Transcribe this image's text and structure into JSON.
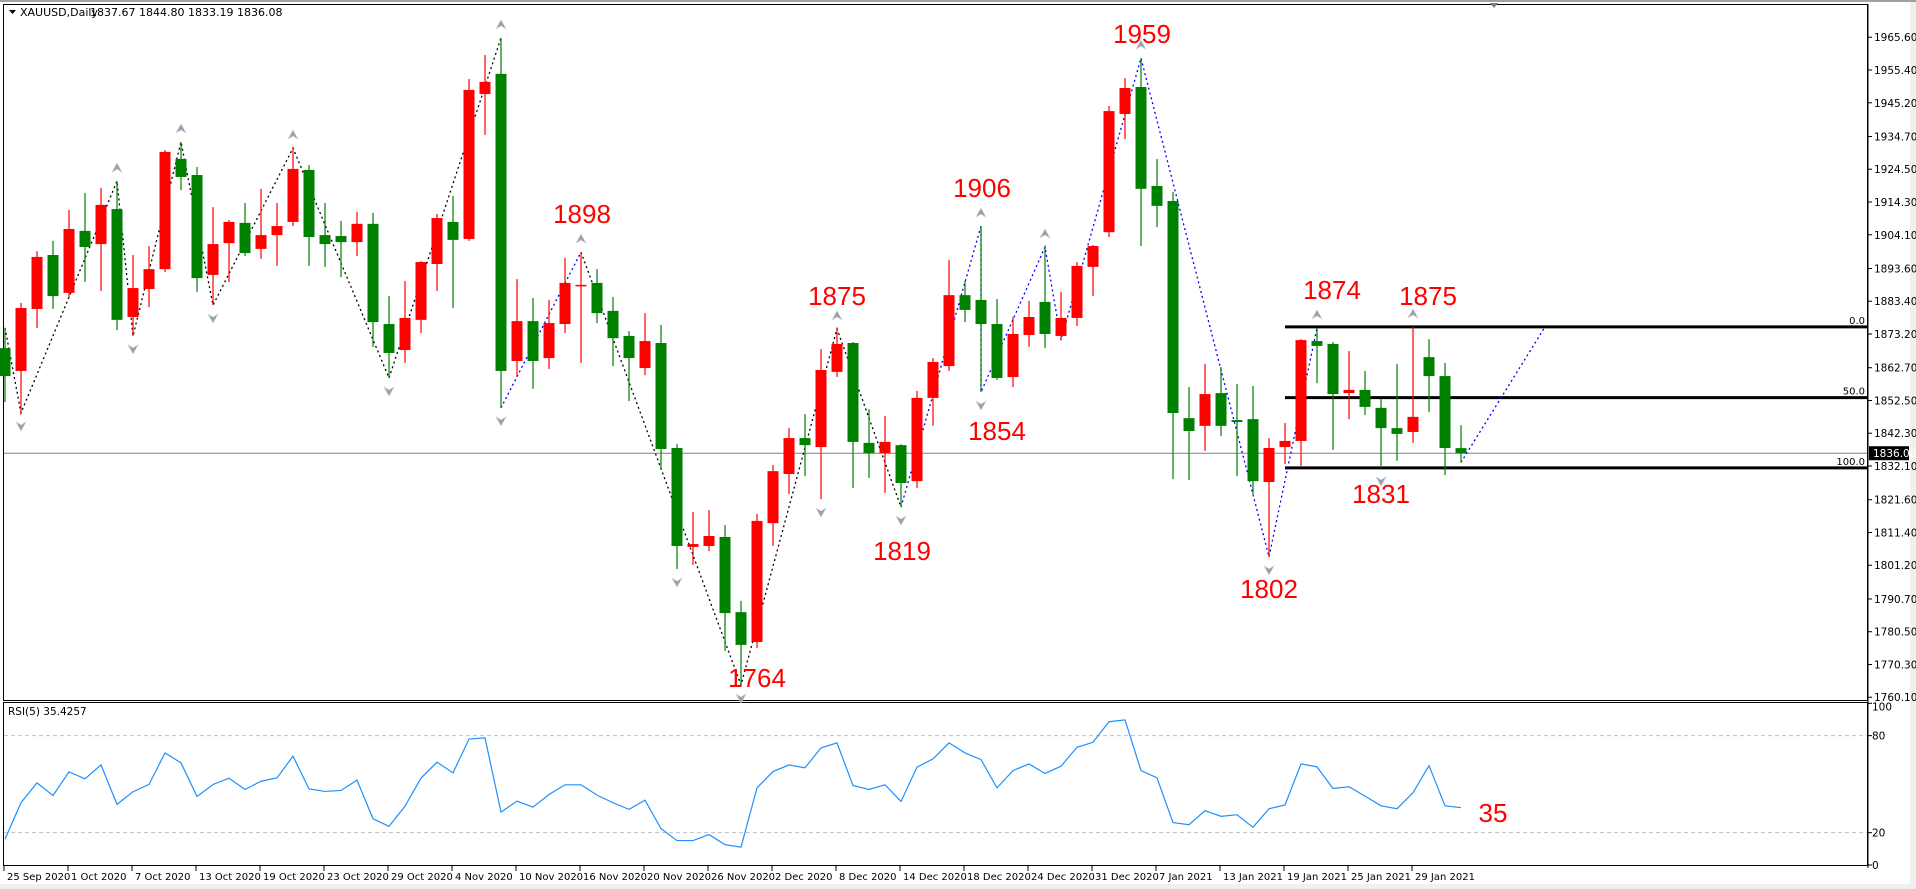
{
  "header": {
    "symbol": "XAUUSD,Daily",
    "ohlc_text": "1837.67 1844.80 1833.19 1836.08"
  },
  "rsi_panel": {
    "label": "RSI(5) 35.4257",
    "annotation": "35",
    "axis_labels": [
      "100",
      "80",
      "20",
      "0"
    ]
  },
  "colors": {
    "bull": "#ff0000",
    "bear": "#008000",
    "rsi_line": "#1e90ff",
    "zigzag_black": "#000000",
    "zigzag_blue": "#0000ff",
    "annotation": "#ff0000",
    "price_line": "#808080"
  },
  "chart_data": [
    {
      "type": "candlestick",
      "symbol": "XAUUSD",
      "timeframe": "Daily",
      "ylim": [
        1760.1,
        1965.6
      ],
      "price_ticks": [
        "1965.60",
        "1955.40",
        "1945.20",
        "1934.70",
        "1924.50",
        "1914.30",
        "1904.10",
        "1893.60",
        "1883.40",
        "1873.20",
        "1862.70",
        "1852.50",
        "1842.30",
        "1832.10",
        "1821.60",
        "1811.40",
        "1801.20",
        "1790.70",
        "1780.50",
        "1770.30",
        "1760.10"
      ],
      "date_ticks": [
        "25 Sep 2020",
        "1 Oct 2020",
        "7 Oct 2020",
        "13 Oct 2020",
        "19 Oct 2020",
        "23 Oct 2020",
        "29 Oct 2020",
        "4 Nov 2020",
        "10 Nov 2020",
        "16 Nov 2020",
        "20 Nov 2020",
        "26 Nov 2020",
        "2 Dec 2020",
        "8 Dec 2020",
        "14 Dec 2020",
        "18 Dec 2020",
        "24 Dec 2020",
        "31 Dec 2020",
        "7 Jan 2021",
        "13 Jan 2021",
        "19 Jan 2021",
        "25 Jan 2021",
        "29 Jan 2021"
      ],
      "current_price": "1836.08",
      "ohlc": [
        [
          1868.8,
          1875.1,
          1852.0,
          1860.1
        ],
        [
          1861.7,
          1882.9,
          1848.6,
          1881.3
        ],
        [
          1881.0,
          1899.0,
          1875.1,
          1897.2
        ],
        [
          1897.8,
          1902.2,
          1881.0,
          1885.0
        ],
        [
          1886.0,
          1911.8,
          1884.4,
          1905.9
        ],
        [
          1905.3,
          1917.1,
          1889.4,
          1900.3
        ],
        [
          1901.2,
          1918.7,
          1886.6,
          1913.4
        ],
        [
          1912.1,
          1920.8,
          1874.4,
          1877.6
        ],
        [
          1878.5,
          1897.8,
          1872.6,
          1887.5
        ],
        [
          1887.2,
          1900.6,
          1881.6,
          1893.4
        ],
        [
          1893.4,
          1930.5,
          1892.5,
          1929.9
        ],
        [
          1927.7,
          1933.0,
          1918.0,
          1922.1
        ],
        [
          1922.7,
          1925.2,
          1886.3,
          1890.6
        ],
        [
          1891.6,
          1912.7,
          1882.2,
          1901.2
        ],
        [
          1901.5,
          1908.7,
          1889.4,
          1908.1
        ],
        [
          1907.8,
          1914.0,
          1897.5,
          1898.4
        ],
        [
          1899.7,
          1918.4,
          1896.6,
          1904.0
        ],
        [
          1904.0,
          1914.0,
          1894.4,
          1906.8
        ],
        [
          1908.1,
          1931.1,
          1906.8,
          1924.6
        ],
        [
          1924.3,
          1925.8,
          1894.4,
          1903.4
        ],
        [
          1904.0,
          1914.0,
          1894.1,
          1901.2
        ],
        [
          1903.7,
          1908.4,
          1890.9,
          1901.8
        ],
        [
          1901.8,
          1911.2,
          1897.5,
          1907.5
        ],
        [
          1907.5,
          1910.9,
          1869.2,
          1876.9
        ],
        [
          1876.3,
          1885.0,
          1859.5,
          1867.3
        ],
        [
          1868.2,
          1889.7,
          1864.2,
          1878.2
        ],
        [
          1877.6,
          1895.9,
          1873.5,
          1895.6
        ],
        [
          1895.0,
          1910.6,
          1886.6,
          1909.3
        ],
        [
          1908.1,
          1916.2,
          1881.3,
          1902.5
        ],
        [
          1902.8,
          1952.6,
          1902.2,
          1949.2
        ],
        [
          1947.9,
          1960.1,
          1935.2,
          1951.7
        ],
        [
          1954.2,
          1965.4,
          1850.2,
          1861.7
        ],
        [
          1864.8,
          1890.3,
          1859.8,
          1877.2
        ],
        [
          1877.2,
          1884.4,
          1856.1,
          1864.8
        ],
        [
          1865.7,
          1883.8,
          1862.3,
          1876.6
        ],
        [
          1876.3,
          1896.9,
          1873.5,
          1889.1
        ],
        [
          1888.2,
          1898.7,
          1864.2,
          1888.5
        ],
        [
          1889.1,
          1893.4,
          1876.6,
          1879.7
        ],
        [
          1880.4,
          1884.7,
          1863.2,
          1871.9
        ],
        [
          1872.6,
          1874.1,
          1852.3,
          1865.7
        ],
        [
          1862.6,
          1879.7,
          1860.4,
          1871.0
        ],
        [
          1870.4,
          1876.0,
          1830.9,
          1837.4
        ],
        [
          1837.7,
          1838.9,
          1800.0,
          1807.2
        ],
        [
          1806.9,
          1817.8,
          1801.3,
          1807.8
        ],
        [
          1807.2,
          1818.4,
          1805.6,
          1810.3
        ],
        [
          1810.0,
          1813.7,
          1774.5,
          1786.3
        ],
        [
          1786.6,
          1790.1,
          1763.9,
          1776.4
        ],
        [
          1777.3,
          1817.2,
          1775.4,
          1815.0
        ],
        [
          1814.3,
          1832.4,
          1807.2,
          1830.5
        ],
        [
          1829.6,
          1843.9,
          1823.4,
          1840.8
        ],
        [
          1840.8,
          1848.3,
          1829.0,
          1838.6
        ],
        [
          1838.0,
          1868.5,
          1821.8,
          1862.0
        ],
        [
          1861.4,
          1874.8,
          1859.8,
          1870.1
        ],
        [
          1870.4,
          1870.7,
          1825.2,
          1839.6
        ],
        [
          1839.3,
          1849.8,
          1828.4,
          1836.1
        ],
        [
          1836.1,
          1847.7,
          1823.7,
          1839.6
        ],
        [
          1838.6,
          1838.9,
          1819.3,
          1826.8
        ],
        [
          1827.4,
          1855.5,
          1825.2,
          1853.3
        ],
        [
          1853.3,
          1865.7,
          1844.6,
          1864.5
        ],
        [
          1863.2,
          1896.2,
          1861.7,
          1885.3
        ],
        [
          1885.3,
          1889.7,
          1876.9,
          1880.7
        ],
        [
          1883.8,
          1906.8,
          1855.1,
          1876.3
        ],
        [
          1876.3,
          1884.1,
          1858.9,
          1859.5
        ],
        [
          1859.8,
          1878.5,
          1856.7,
          1873.2
        ],
        [
          1872.9,
          1883.5,
          1869.2,
          1878.5
        ],
        [
          1883.2,
          1900.3,
          1868.8,
          1873.2
        ],
        [
          1872.6,
          1886.3,
          1871.3,
          1878.2
        ],
        [
          1878.2,
          1895.6,
          1875.7,
          1894.4
        ],
        [
          1894.1,
          1900.9,
          1885.0,
          1900.6
        ],
        [
          1904.9,
          1944.2,
          1903.4,
          1942.6
        ],
        [
          1941.7,
          1952.9,
          1933.9,
          1949.8
        ],
        [
          1950.1,
          1959.1,
          1900.6,
          1918.4
        ],
        [
          1919.3,
          1927.7,
          1906.5,
          1913.1
        ],
        [
          1914.6,
          1917.4,
          1828.0,
          1848.6
        ],
        [
          1847.0,
          1856.7,
          1827.7,
          1843.0
        ],
        [
          1844.6,
          1863.9,
          1836.8,
          1854.5
        ],
        [
          1854.8,
          1862.9,
          1841.4,
          1844.6
        ],
        [
          1846.4,
          1857.6,
          1829.0,
          1845.8
        ],
        [
          1846.7,
          1857.0,
          1823.4,
          1827.4
        ],
        [
          1827.1,
          1840.8,
          1803.8,
          1837.7
        ],
        [
          1838.0,
          1845.5,
          1832.7,
          1839.9
        ],
        [
          1839.9,
          1871.6,
          1832.1,
          1871.3
        ],
        [
          1871.0,
          1875.1,
          1857.9,
          1869.5
        ],
        [
          1870.1,
          1870.7,
          1837.1,
          1854.5
        ],
        [
          1854.8,
          1867.9,
          1846.7,
          1855.8
        ],
        [
          1855.8,
          1861.7,
          1848.0,
          1850.5
        ],
        [
          1850.2,
          1853.0,
          1831.5,
          1843.9
        ],
        [
          1843.9,
          1863.9,
          1833.7,
          1842.1
        ],
        [
          1842.7,
          1875.4,
          1839.3,
          1847.4
        ],
        [
          1866.0,
          1871.6,
          1848.9,
          1860.1
        ],
        [
          1860.1,
          1864.2,
          1829.3,
          1837.7
        ],
        [
          1837.67,
          1844.8,
          1833.19,
          1836.08
        ]
      ],
      "fibonacci": {
        "levels": [
          {
            "label": "0.0",
            "price": 1875.4
          },
          {
            "label": "50.0",
            "price": 1853.4
          },
          {
            "label": "100.0",
            "price": 1831.5
          }
        ]
      },
      "zigzag_black": [
        [
          0,
          1875.1
        ],
        [
          1,
          1848.6
        ],
        [
          7,
          1920.8
        ],
        [
          8,
          1872.6
        ],
        [
          11,
          1933.0
        ],
        [
          13,
          1882.2
        ],
        [
          18,
          1931.1
        ],
        [
          24,
          1859.5
        ],
        [
          31,
          1965.4
        ]
      ],
      "zigzag_black_2": [
        [
          36,
          1898.7
        ],
        [
          46,
          1763.9
        ],
        [
          52,
          1874.8
        ],
        [
          56,
          1819.3
        ]
      ],
      "zigzag_blue": [
        [
          31,
          1850.2
        ],
        [
          36,
          1898.7
        ]
      ],
      "zigzag_blue_2": [
        [
          56,
          1819.3
        ],
        [
          61,
          1906.8
        ],
        [
          61,
          1855.1
        ],
        [
          65,
          1900.3
        ],
        [
          66,
          1871.3
        ],
        [
          71,
          1959.1
        ],
        [
          79,
          1803.8
        ],
        [
          82,
          1875.1
        ]
      ],
      "zigzag_blue_projection": [
        [
          91,
          1833.2
        ],
        [
          96.25,
          1875.4
        ]
      ],
      "fractal_up_bars": [
        7,
        11,
        18,
        31,
        36,
        52,
        61,
        65,
        71,
        82,
        88
      ],
      "fractal_down_bars": [
        1,
        8,
        13,
        24,
        31,
        42,
        46,
        51,
        56,
        61,
        79,
        86
      ],
      "annotations": [
        "1959",
        "1898",
        "1875",
        "1906",
        "1854",
        "1819",
        "1764",
        "1874",
        "1875",
        "1831",
        "1802"
      ]
    },
    {
      "type": "line",
      "name": "RSI(5)",
      "ylim": [
        0,
        100
      ],
      "levels": [
        80,
        20
      ],
      "values": [
        16,
        38.5,
        50.8,
        43,
        57.6,
        53.3,
        61.9,
        37.5,
        45.3,
        49.8,
        69.3,
        63.2,
        42.4,
        49.8,
        53.7,
        46.7,
        51.8,
        53.9,
        67.3,
        47.1,
        45.5,
        46.1,
        52.5,
        28.6,
        23.9,
        36.4,
        53.7,
        63.6,
        57,
        77.9,
        78.6,
        32.7,
        39.5,
        35.8,
        43.6,
        49.6,
        49.6,
        43.2,
        38.5,
        34.4,
        40.1,
        22.5,
        15.1,
        15.1,
        18.8,
        12.6,
        11,
        47.7,
        57.8,
        61.9,
        60.1,
        72.4,
        75.5,
        49.2,
        46.7,
        49.6,
        39.3,
        60.5,
        65.6,
        75.5,
        69.3,
        65.2,
        47.7,
        58.4,
        62.5,
        56.6,
        61.1,
        72.8,
        75.9,
        88.6,
        89.7,
        58.4,
        53.9,
        26.2,
        24.9,
        33.6,
        30.1,
        31.1,
        23.3,
        34.8,
        37.1,
        62.5,
        60.7,
        47.3,
        48.4,
        42.6,
        36.6,
        34.8,
        44.7,
        61.5,
        36.6,
        35.4257
      ]
    }
  ]
}
